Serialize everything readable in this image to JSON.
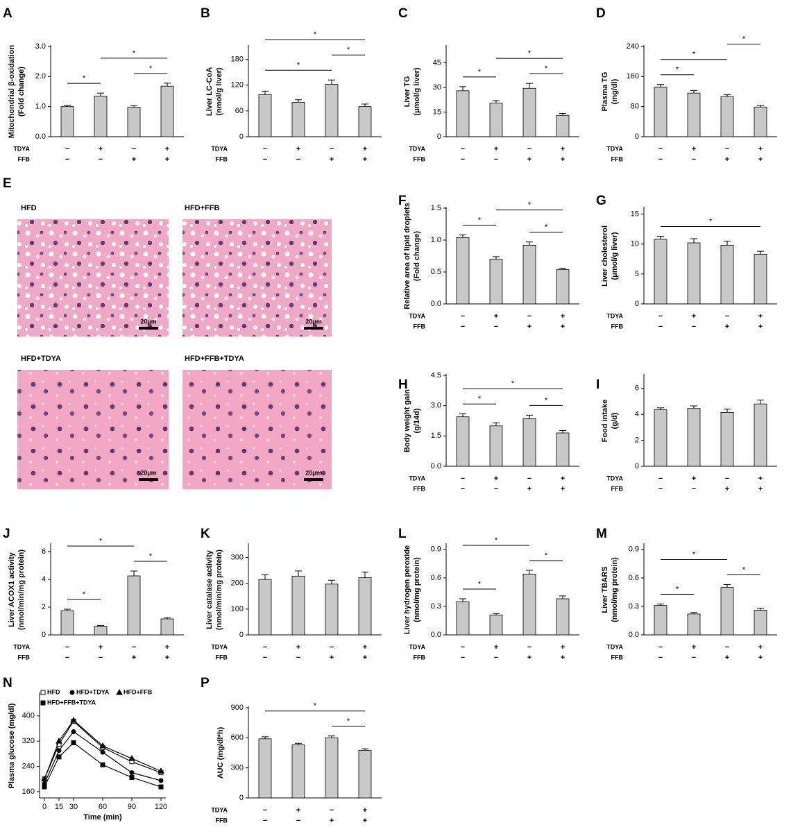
{
  "panel_e": {
    "letter": "E",
    "images": [
      {
        "label": "HFD",
        "scale": "20μm"
      },
      {
        "label": "HFD+FFB",
        "scale": "20μm"
      },
      {
        "label": "HFD+TDYA",
        "scale": "20μm"
      },
      {
        "label": "HFD+FFB+TDYA",
        "scale": "20μm"
      }
    ]
  },
  "chart_data": [
    {
      "type": "bar",
      "letter": "A",
      "ylabel": [
        "Mitochondrial β-oxidation",
        "(Fold change)"
      ],
      "color": "#c8c8c8",
      "values": [
        1.0,
        1.35,
        0.98,
        1.68
      ],
      "errors": [
        0.04,
        0.1,
        0.05,
        0.1
      ],
      "ylim": [
        0,
        3
      ],
      "yticks": [
        {
          "value": 0,
          "label": "0.0"
        },
        {
          "value": 1,
          "label": "1.0"
        },
        {
          "value": 2,
          "label": "2.0"
        },
        {
          "value": 3,
          "label": "3.0"
        }
      ],
      "treatments": [
        {
          "name": "TDYA",
          "signs": [
            "−",
            "+",
            "−",
            "+"
          ]
        },
        {
          "name": "FFB",
          "signs": [
            "−",
            "−",
            "+",
            "+"
          ]
        }
      ],
      "significance": [
        {
          "from": 0,
          "to": 1,
          "label": "*"
        },
        {
          "from": 2,
          "to": 3,
          "label": "*"
        },
        {
          "from": 1,
          "to": 3,
          "label": "*"
        }
      ]
    },
    {
      "type": "bar",
      "letter": "B",
      "ylabel": [
        "Liver LC-CoA",
        "(nmol/g liver)"
      ],
      "color": "#c8c8c8",
      "values": [
        98,
        80,
        122,
        70
      ],
      "errors": [
        8,
        6,
        10,
        6
      ],
      "ylim": [
        0,
        210
      ],
      "yticks": [
        0,
        60,
        120,
        180
      ],
      "treatments": [
        {
          "name": "TDYA",
          "signs": [
            "−",
            "+",
            "−",
            "+"
          ]
        },
        {
          "name": "FFB",
          "signs": [
            "−",
            "−",
            "+",
            "+"
          ]
        }
      ],
      "significance": [
        {
          "from": 0,
          "to": 2,
          "label": "*"
        },
        {
          "from": 2,
          "to": 3,
          "label": "*"
        },
        {
          "from": 0,
          "to": 3,
          "label": "*"
        }
      ]
    },
    {
      "type": "bar",
      "letter": "C",
      "ylabel": [
        "Liver TG",
        "(μmol/g liver)"
      ],
      "color": "#c8c8c8",
      "values": [
        28,
        20.5,
        29.5,
        13
      ],
      "errors": [
        2.5,
        1.5,
        3,
        1.2
      ],
      "ylim": [
        0,
        55
      ],
      "yticks": [
        0,
        15,
        30,
        45
      ],
      "treatments": [
        {
          "name": "TDYA",
          "signs": [
            "−",
            "+",
            "−",
            "+"
          ]
        },
        {
          "name": "FFB",
          "signs": [
            "−",
            "−",
            "+",
            "+"
          ]
        }
      ],
      "significance": [
        {
          "from": 0,
          "to": 1,
          "label": "*"
        },
        {
          "from": 2,
          "to": 3,
          "label": "*"
        },
        {
          "from": 1,
          "to": 3,
          "label": "*"
        }
      ]
    },
    {
      "type": "bar",
      "letter": "D",
      "ylabel": [
        "Plasma TG",
        "(mg/dl)"
      ],
      "color": "#c8c8c8",
      "values": [
        132,
        116,
        107,
        79
      ],
      "errors": [
        7,
        7,
        5,
        4
      ],
      "ylim": [
        0,
        240
      ],
      "yticks": [
        0,
        80,
        160,
        240
      ],
      "treatments": [
        {
          "name": "TDYA",
          "signs": [
            "−",
            "+",
            "−",
            "+"
          ]
        },
        {
          "name": "FFB",
          "signs": [
            "−",
            "−",
            "+",
            "+"
          ]
        }
      ],
      "significance": [
        {
          "from": 0,
          "to": 1,
          "label": "*"
        },
        {
          "from": 0,
          "to": 2,
          "label": "*"
        },
        {
          "from": 2,
          "to": 3,
          "label": "*"
        }
      ]
    },
    {
      "type": "bar",
      "letter": "F",
      "ylabel": [
        "Relative area of lipid droplets",
        "(Fold change)"
      ],
      "color": "#c8c8c8",
      "values": [
        1.04,
        0.7,
        0.92,
        0.54
      ],
      "errors": [
        0.04,
        0.04,
        0.05,
        0.02
      ],
      "ylim": [
        0,
        1.5
      ],
      "yticks": [
        {
          "value": 0,
          "label": "0.0"
        },
        0.5,
        {
          "value": 1,
          "label": "1.0"
        },
        1.5
      ],
      "treatments": [
        {
          "name": "TDYA",
          "signs": [
            "−",
            "+",
            "−",
            "+"
          ]
        },
        {
          "name": "FFB",
          "signs": [
            "−",
            "−",
            "+",
            "+"
          ]
        }
      ],
      "significance": [
        {
          "from": 0,
          "to": 1,
          "label": "*"
        },
        {
          "from": 2,
          "to": 3,
          "label": "*"
        },
        {
          "from": 1,
          "to": 3,
          "label": "*"
        }
      ]
    },
    {
      "type": "bar",
      "letter": "G",
      "ylabel": [
        "Liver cholesterol",
        "(μmol/g liver)"
      ],
      "color": "#c8c8c8",
      "values": [
        10.8,
        10.2,
        9.8,
        8.3
      ],
      "errors": [
        0.5,
        0.7,
        0.7,
        0.5
      ],
      "ylim": [
        0,
        16
      ],
      "yticks": [
        0,
        5,
        10,
        15
      ],
      "treatments": [
        {
          "name": "TDYA",
          "signs": [
            "−",
            "+",
            "−",
            "+"
          ]
        },
        {
          "name": "FFB",
          "signs": [
            "−",
            "−",
            "+",
            "+"
          ]
        }
      ],
      "significance": [
        {
          "from": 0,
          "to": 3,
          "label": "*"
        }
      ]
    },
    {
      "type": "bar",
      "letter": "H",
      "ylabel": [
        "Body weight gain",
        "(g/14d)"
      ],
      "color": "#c8c8c8",
      "values": [
        2.45,
        2.0,
        2.35,
        1.65
      ],
      "errors": [
        0.15,
        0.15,
        0.18,
        0.12
      ],
      "ylim": [
        0,
        4.5
      ],
      "yticks": [
        {
          "value": 0,
          "label": "0.0"
        },
        1.5,
        {
          "value": 3,
          "label": "3.0"
        },
        4.5
      ],
      "treatments": [
        {
          "name": "TDYA",
          "signs": [
            "−",
            "+",
            "−",
            "+"
          ]
        },
        {
          "name": "FFB",
          "signs": [
            "−",
            "−",
            "+",
            "+"
          ]
        }
      ],
      "significance": [
        {
          "from": 0,
          "to": 1,
          "label": "*"
        },
        {
          "from": 2,
          "to": 3,
          "label": "*"
        },
        {
          "from": 0,
          "to": 3,
          "label": "*"
        }
      ]
    },
    {
      "type": "bar",
      "letter": "I",
      "ylabel": [
        "Food intake",
        "(g/d)"
      ],
      "color": "#c8c8c8",
      "values": [
        4.35,
        4.45,
        4.15,
        4.8
      ],
      "errors": [
        0.15,
        0.2,
        0.25,
        0.3
      ],
      "ylim": [
        0,
        7
      ],
      "yticks": [
        0,
        2,
        4,
        6
      ],
      "treatments": [
        {
          "name": "TDYA",
          "signs": [
            "−",
            "+",
            "−",
            "+"
          ]
        },
        {
          "name": "FFB",
          "signs": [
            "−",
            "−",
            "+",
            "+"
          ]
        }
      ],
      "significance": []
    },
    {
      "type": "bar",
      "letter": "J",
      "ylabel": [
        "Liver ACOX1 activity",
        "(nmol/min/mg protein)"
      ],
      "color": "#c8c8c8",
      "values": [
        1.75,
        0.62,
        4.25,
        1.15
      ],
      "errors": [
        0.1,
        0.05,
        0.35,
        0.08
      ],
      "ylim": [
        0,
        6.5
      ],
      "yticks": [
        0,
        2,
        4,
        6
      ],
      "treatments": [
        {
          "name": "TDYA",
          "signs": [
            "−",
            "+",
            "−",
            "+"
          ]
        },
        {
          "name": "FFB",
          "signs": [
            "−",
            "−",
            "+",
            "+"
          ]
        }
      ],
      "significance": [
        {
          "from": 0,
          "to": 1,
          "label": "*"
        },
        {
          "from": 2,
          "to": 3,
          "label": "*"
        },
        {
          "from": 0,
          "to": 2,
          "label": "*"
        }
      ]
    },
    {
      "type": "bar",
      "letter": "K",
      "ylabel": [
        "Liver catalase activity",
        "(nmol/min/mg protein)"
      ],
      "color": "#c8c8c8",
      "values": [
        215,
        228,
        197,
        222
      ],
      "errors": [
        18,
        20,
        15,
        22
      ],
      "ylim": [
        0,
        350
      ],
      "yticks": [
        0,
        100,
        200,
        300
      ],
      "treatments": [
        {
          "name": "TDYA",
          "signs": [
            "−",
            "+",
            "−",
            "+"
          ]
        },
        {
          "name": "FFB",
          "signs": [
            "−",
            "−",
            "+",
            "+"
          ]
        }
      ],
      "significance": []
    },
    {
      "type": "bar",
      "letter": "L",
      "ylabel": [
        "Liver hydrogen peroxide",
        "(nmol/mg protein)"
      ],
      "color": "#c8c8c8",
      "values": [
        0.35,
        0.21,
        0.64,
        0.38
      ],
      "errors": [
        0.03,
        0.015,
        0.04,
        0.03
      ],
      "ylim": [
        0,
        0.95
      ],
      "yticks": [
        {
          "value": 0,
          "label": "0.0"
        },
        0.3,
        0.6,
        0.9
      ],
      "treatments": [
        {
          "name": "TDYA",
          "signs": [
            "−",
            "+",
            "−",
            "+"
          ]
        },
        {
          "name": "FFB",
          "signs": [
            "−",
            "−",
            "+",
            "+"
          ]
        }
      ],
      "significance": [
        {
          "from": 0,
          "to": 1,
          "label": "*"
        },
        {
          "from": 2,
          "to": 3,
          "label": "*"
        },
        {
          "from": 0,
          "to": 2,
          "label": "*"
        }
      ]
    },
    {
      "type": "bar",
      "letter": "M",
      "ylabel": [
        "Liver TBARS",
        "(nmol/mg protein)"
      ],
      "color": "#c8c8c8",
      "values": [
        0.31,
        0.22,
        0.5,
        0.26
      ],
      "errors": [
        0.015,
        0.015,
        0.03,
        0.02
      ],
      "ylim": [
        0,
        0.95
      ],
      "yticks": [
        {
          "value": 0,
          "label": "0.0"
        },
        0.3,
        0.6,
        0.9
      ],
      "treatments": [
        {
          "name": "TDYA",
          "signs": [
            "−",
            "+",
            "−",
            "+"
          ]
        },
        {
          "name": "FFB",
          "signs": [
            "−",
            "−",
            "+",
            "+"
          ]
        }
      ],
      "significance": [
        {
          "from": 0,
          "to": 1,
          "label": "*"
        },
        {
          "from": 2,
          "to": 3,
          "label": "*"
        },
        {
          "from": 0,
          "to": 2,
          "label": "*"
        }
      ]
    },
    {
      "type": "line",
      "letter": "N",
      "ylabel": [
        "Plasma glucose (mg/dl)"
      ],
      "xlabel": "Time (min)",
      "x": [
        0,
        15,
        30,
        60,
        90,
        120
      ],
      "xlim": [
        -5,
        125
      ],
      "xticks": [
        0,
        15,
        30,
        60,
        90,
        120
      ],
      "ylim": [
        140,
        470
      ],
      "yticks": [
        160,
        240,
        320,
        400
      ],
      "series": [
        {
          "name": "HFD",
          "marker": "open-square",
          "color": "#000000",
          "values": [
            200,
            310,
            383,
            300,
            255,
            220
          ]
        },
        {
          "name": "HFD+TDYA",
          "marker": "circle",
          "color": "#000000",
          "values": [
            185,
            290,
            350,
            285,
            220,
            195
          ]
        },
        {
          "name": "HFD+FFB",
          "marker": "triangle",
          "color": "#000000",
          "values": [
            200,
            320,
            386,
            305,
            265,
            225
          ]
        },
        {
          "name": "HFD+FFB+TDYA",
          "marker": "square",
          "color": "#000000",
          "values": [
            175,
            270,
            315,
            245,
            205,
            175
          ]
        }
      ]
    },
    {
      "type": "bar",
      "letter": "P",
      "ylabel": [
        "AUC (mg/dl*h)"
      ],
      "color": "#c8c8c8",
      "values": [
        590,
        530,
        600,
        475
      ],
      "errors": [
        20,
        15,
        18,
        15
      ],
      "ylim": [
        0,
        900
      ],
      "yticks": [
        0,
        300,
        600,
        900
      ],
      "treatments": [
        {
          "name": "TDYA",
          "signs": [
            "−",
            "+",
            "−",
            "+"
          ]
        },
        {
          "name": "FFB",
          "signs": [
            "−",
            "−",
            "+",
            "+"
          ]
        }
      ],
      "significance": [
        {
          "from": 2,
          "to": 3,
          "label": "*"
        },
        {
          "from": 0,
          "to": 3,
          "label": "*"
        }
      ]
    }
  ]
}
